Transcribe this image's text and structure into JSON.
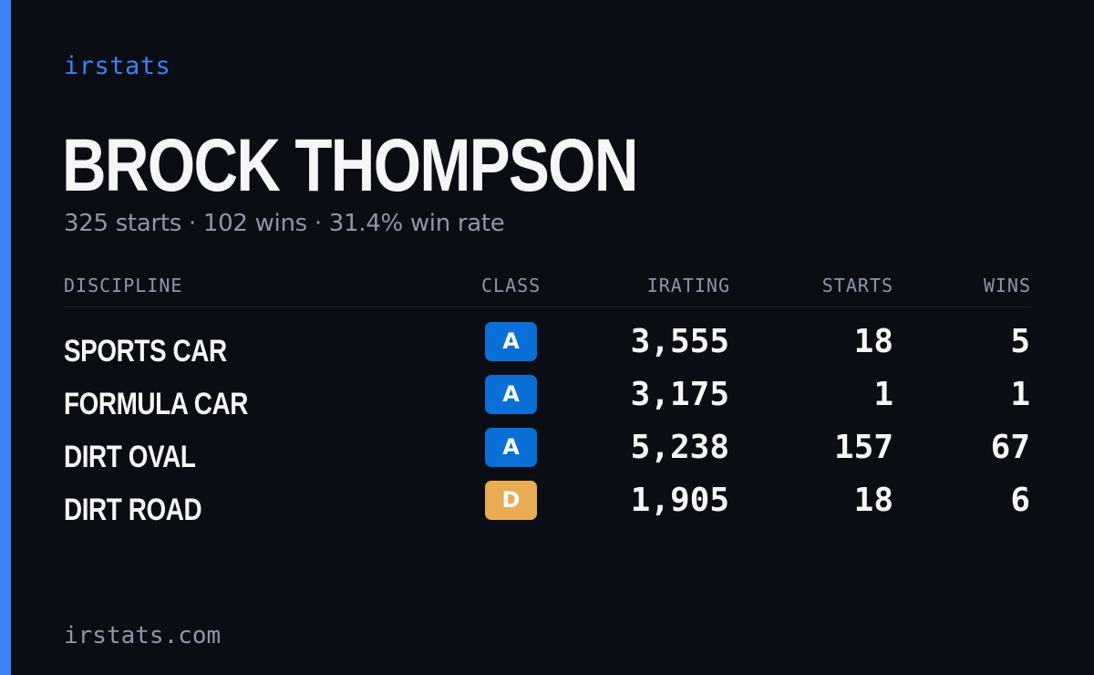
{
  "brand": "irstats",
  "driver": {
    "name": "BROCK THOMPSON",
    "summary": "325 starts · 102 wins · 31.4% win rate"
  },
  "table": {
    "headers": {
      "discipline": "DISCIPLINE",
      "class": "CLASS",
      "irating": "IRATING",
      "starts": "STARTS",
      "wins": "WINS"
    },
    "rows": [
      {
        "discipline": "SPORTS CAR",
        "class": "A",
        "irating": "3,555",
        "starts": "18",
        "wins": "5"
      },
      {
        "discipline": "FORMULA CAR",
        "class": "A",
        "irating": "3,175",
        "starts": "1",
        "wins": "1"
      },
      {
        "discipline": "DIRT OVAL",
        "class": "A",
        "irating": "5,238",
        "starts": "157",
        "wins": "67"
      },
      {
        "discipline": "DIRT ROAD",
        "class": "D",
        "irating": "1,905",
        "starts": "18",
        "wins": "6"
      }
    ]
  },
  "footer": "irstats.com",
  "colors": {
    "accent": "#3b82f6",
    "background": "#0b0d14",
    "class_A": "#0a6fd6",
    "class_D": "#e8ac52",
    "muted_text": "#8e96a8"
  }
}
